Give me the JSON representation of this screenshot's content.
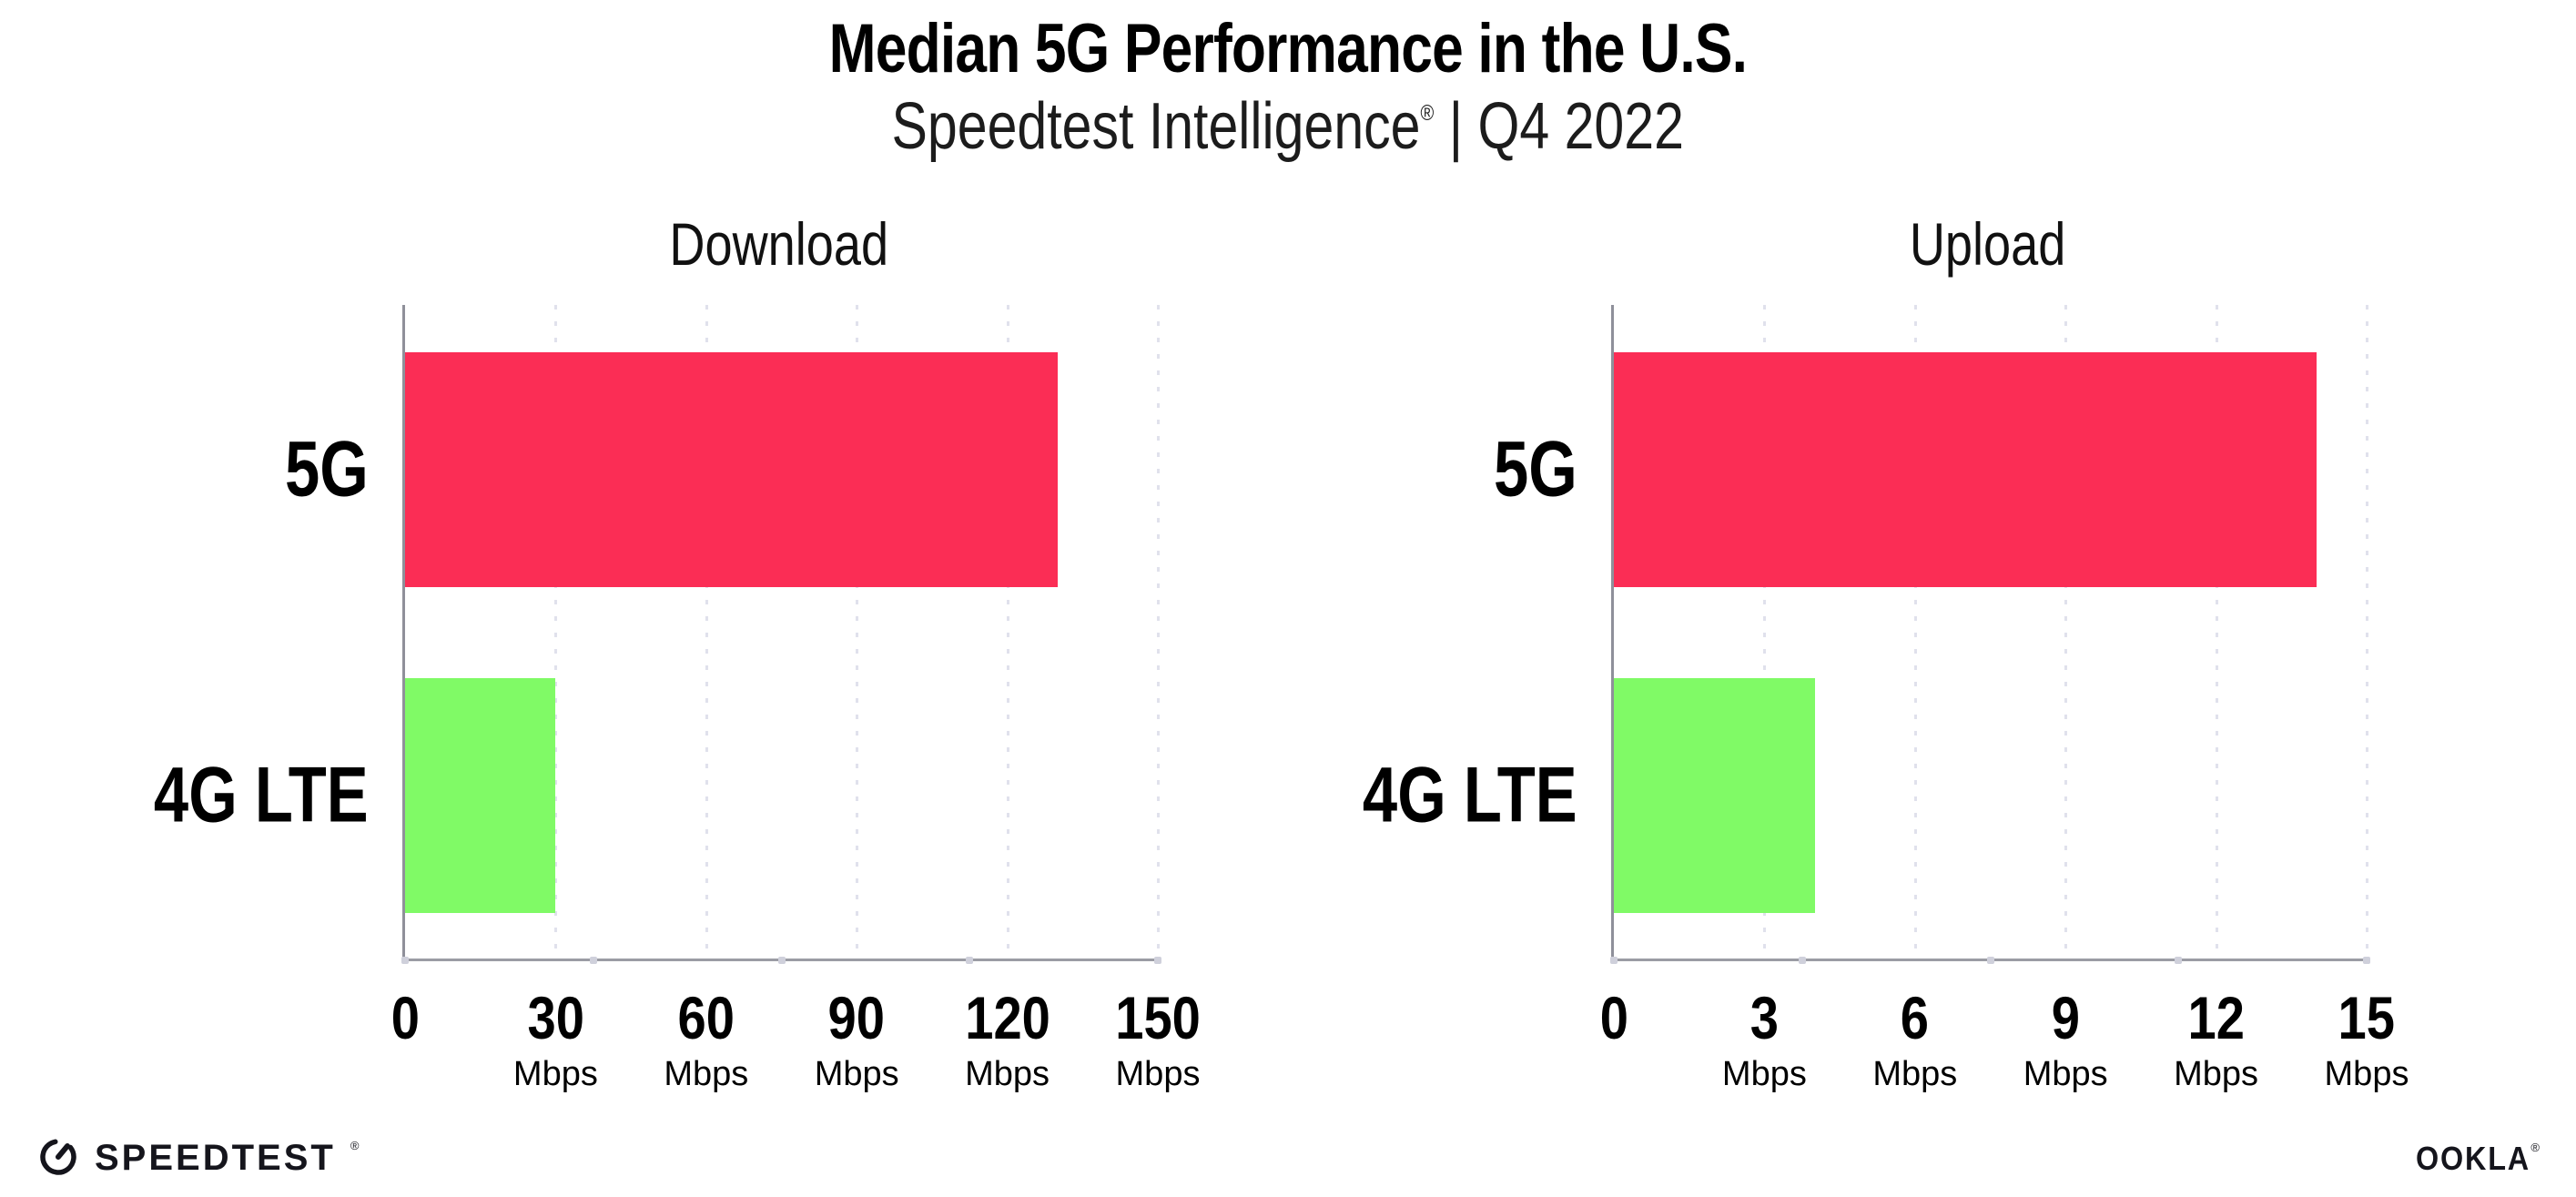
{
  "header": {
    "title": "Median 5G Performance in the U.S.",
    "subtitle": {
      "brand": "Speedtest Intelligence",
      "registered_mark": "®",
      "separator": "|",
      "period": "Q4 2022"
    }
  },
  "chart_data": [
    {
      "type": "bar",
      "orientation": "horizontal",
      "title": "Download",
      "categories": [
        "5G",
        "4G LTE"
      ],
      "values": [
        130,
        30
      ],
      "unit": "Mbps",
      "xlim": [
        0,
        150
      ],
      "xticks": [
        0,
        30,
        60,
        90,
        120,
        150
      ],
      "bar_colors": [
        "#fb2d55",
        "#80fa66"
      ],
      "grid": "dotted-vertical",
      "legend": "none"
    },
    {
      "type": "bar",
      "orientation": "horizontal",
      "title": "Upload",
      "categories": [
        "5G",
        "4G LTE"
      ],
      "values": [
        14,
        4
      ],
      "unit": "Mbps",
      "xlim": [
        0,
        15
      ],
      "xticks": [
        0,
        3,
        6,
        9,
        12,
        15
      ],
      "bar_colors": [
        "#fb2d55",
        "#80fa66"
      ],
      "grid": "dotted-vertical",
      "legend": "none"
    }
  ],
  "footer": {
    "speedtest_wordmark": "SPEEDTEST",
    "speedtest_registered_mark": "®",
    "ookla_wordmark": "OOKLA",
    "ookla_registered_mark": "®"
  },
  "colors": {
    "bar_5g": "#fb2d55",
    "bar_4g_lte": "#80fa66",
    "axis": "#8f909a",
    "gridline": "#e0e1ec",
    "text": "#000000",
    "logo": "#15151c",
    "background": "#ffffff"
  }
}
